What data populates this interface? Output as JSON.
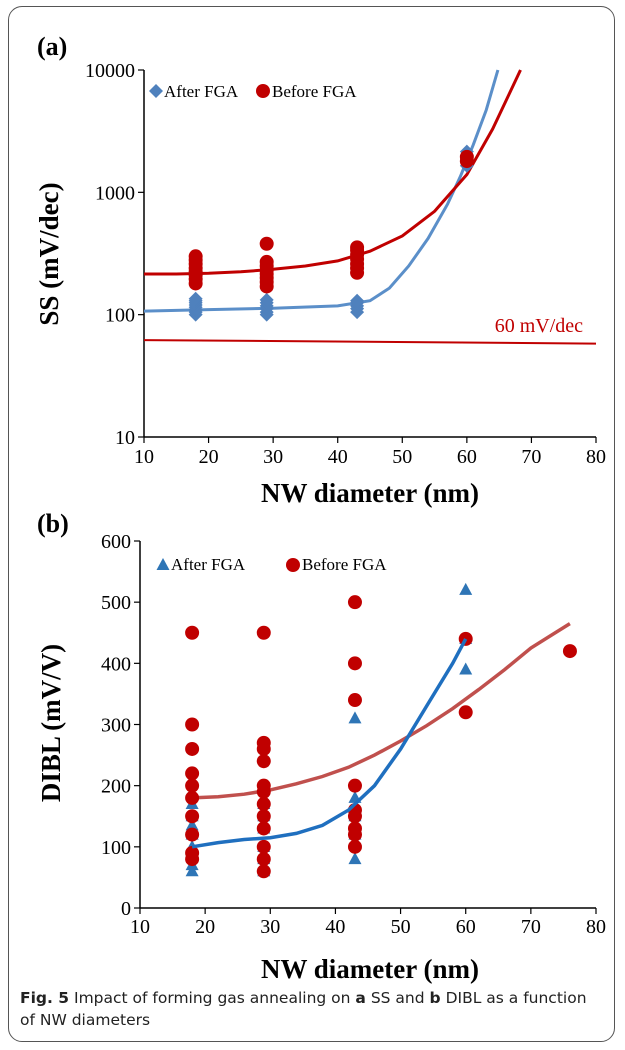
{
  "colors": {
    "after": "#4f81bd",
    "after_fit": "#5b8fc9",
    "before": "#c00000",
    "before_fit": "#c00000",
    "after_b": "#2e75b6",
    "after_fit_b": "#1f6fbf",
    "before_b": "#c00000",
    "before_fit_b": "#c0504d",
    "ref_line": "#c00000"
  },
  "caption": {
    "prefix": "Fig. 5",
    "text_1": "Impact of forming gas annealing on",
    "a": "a",
    "text_2": "SS and",
    "b": "b",
    "text_3": "DIBL as a function of NW diameters"
  },
  "chart_data": [
    {
      "panel": "(a)",
      "type": "scatter",
      "xlabel": "NW diameter (nm)",
      "ylabel": "SS (mV/dec)",
      "xlim": [
        10,
        80
      ],
      "ylim": [
        10,
        10000
      ],
      "yscale": "log",
      "x_ticks": [
        "10",
        "20",
        "30",
        "40",
        "50",
        "60",
        "70",
        "80"
      ],
      "y_ticks": [
        "10",
        "100",
        "1000",
        "10000"
      ],
      "legend_position": "top-left",
      "annotation": "60 mV/dec",
      "reference_line": {
        "x": [
          10,
          80
        ],
        "y": [
          62,
          58
        ]
      },
      "series": [
        {
          "name": "After FGA",
          "marker": "diamond",
          "points": [
            [
              18,
              100
            ],
            [
              18,
              105
            ],
            [
              18,
              110
            ],
            [
              18,
              115
            ],
            [
              18,
              120
            ],
            [
              18,
              125
            ],
            [
              18,
              130
            ],
            [
              18,
              135
            ],
            [
              29,
              100
            ],
            [
              29,
              105
            ],
            [
              29,
              112
            ],
            [
              29,
              118
            ],
            [
              29,
              125
            ],
            [
              29,
              132
            ],
            [
              43,
              105
            ],
            [
              43,
              112
            ],
            [
              43,
              118
            ],
            [
              43,
              125
            ],
            [
              43,
              130
            ],
            [
              60,
              1650
            ],
            [
              60,
              1800
            ],
            [
              60,
              2000
            ],
            [
              60,
              2150
            ]
          ],
          "fit": [
            [
              10,
              107
            ],
            [
              20,
              110
            ],
            [
              30,
              113
            ],
            [
              40,
              118
            ],
            [
              45,
              130
            ],
            [
              48,
              165
            ],
            [
              51,
              250
            ],
            [
              54,
              420
            ],
            [
              57,
              800
            ],
            [
              59,
              1350
            ],
            [
              61,
              2450
            ],
            [
              63,
              4700
            ],
            [
              64.8,
              10000
            ]
          ]
        },
        {
          "name": "Before FGA",
          "marker": "circle",
          "points": [
            [
              18,
              180
            ],
            [
              18,
              195
            ],
            [
              18,
              210
            ],
            [
              18,
              225
            ],
            [
              18,
              240
            ],
            [
              18,
              260
            ],
            [
              18,
              280
            ],
            [
              18,
              300
            ],
            [
              29,
              170
            ],
            [
              29,
              185
            ],
            [
              29,
              200
            ],
            [
              29,
              215
            ],
            [
              29,
              230
            ],
            [
              29,
              250
            ],
            [
              29,
              270
            ],
            [
              29,
              380
            ],
            [
              43,
              220
            ],
            [
              43,
              240
            ],
            [
              43,
              260
            ],
            [
              43,
              285
            ],
            [
              43,
              310
            ],
            [
              43,
              335
            ],
            [
              43,
              355
            ],
            [
              60,
              1800
            ],
            [
              60,
              1950
            ]
          ],
          "fit": [
            [
              10,
              215
            ],
            [
              15,
              215
            ],
            [
              20,
              218
            ],
            [
              25,
              224
            ],
            [
              30,
              235
            ],
            [
              35,
              250
            ],
            [
              40,
              275
            ],
            [
              45,
              330
            ],
            [
              50,
              440
            ],
            [
              55,
              700
            ],
            [
              60,
              1400
            ],
            [
              64,
              3300
            ],
            [
              68.3,
              10000
            ]
          ]
        }
      ]
    },
    {
      "panel": "(b)",
      "type": "scatter",
      "xlabel": "NW diameter (nm)",
      "ylabel": "DIBL (mV/V)",
      "xlim": [
        10,
        80
      ],
      "ylim": [
        0,
        600
      ],
      "x_ticks": [
        "10",
        "20",
        "30",
        "40",
        "50",
        "60",
        "70",
        "80"
      ],
      "y_ticks": [
        "0",
        "100",
        "200",
        "300",
        "400",
        "500",
        "600"
      ],
      "legend_position": "top-left",
      "series": [
        {
          "name": "After FGA",
          "marker": "triangle",
          "points": [
            [
              18,
              60
            ],
            [
              18,
              70
            ],
            [
              18,
              85
            ],
            [
              18,
              100
            ],
            [
              18,
              120
            ],
            [
              18,
              135
            ],
            [
              18,
              150
            ],
            [
              18,
              170
            ],
            [
              29,
              60
            ],
            [
              29,
              80
            ],
            [
              29,
              100
            ],
            [
              29,
              130
            ],
            [
              29,
              150
            ],
            [
              29,
              170
            ],
            [
              43,
              80
            ],
            [
              43,
              120
            ],
            [
              43,
              150
            ],
            [
              43,
              180
            ],
            [
              43,
              310
            ],
            [
              60,
              390
            ],
            [
              60,
              440
            ],
            [
              60,
              520
            ]
          ],
          "fit": [
            [
              18,
              100
            ],
            [
              22,
              107
            ],
            [
              26,
              112
            ],
            [
              30,
              115
            ],
            [
              34,
              122
            ],
            [
              38,
              135
            ],
            [
              42,
              160
            ],
            [
              46,
              200
            ],
            [
              50,
              260
            ],
            [
              54,
              330
            ],
            [
              58,
              400
            ],
            [
              60,
              440
            ]
          ]
        },
        {
          "name": "Before FGA",
          "marker": "circle",
          "points": [
            [
              18,
              80
            ],
            [
              18,
              90
            ],
            [
              18,
              120
            ],
            [
              18,
              150
            ],
            [
              18,
              180
            ],
            [
              18,
              200
            ],
            [
              18,
              220
            ],
            [
              18,
              260
            ],
            [
              18,
              300
            ],
            [
              18,
              450
            ],
            [
              29,
              60
            ],
            [
              29,
              80
            ],
            [
              29,
              100
            ],
            [
              29,
              130
            ],
            [
              29,
              150
            ],
            [
              29,
              170
            ],
            [
              29,
              190
            ],
            [
              29,
              200
            ],
            [
              29,
              240
            ],
            [
              29,
              260
            ],
            [
              29,
              270
            ],
            [
              29,
              450
            ],
            [
              43,
              100
            ],
            [
              43,
              120
            ],
            [
              43,
              130
            ],
            [
              43,
              150
            ],
            [
              43,
              160
            ],
            [
              43,
              200
            ],
            [
              43,
              340
            ],
            [
              43,
              400
            ],
            [
              43,
              500
            ],
            [
              60,
              320
            ],
            [
              60,
              440
            ],
            [
              76,
              420
            ]
          ],
          "fit": [
            [
              18,
              180
            ],
            [
              22,
              182
            ],
            [
              26,
              186
            ],
            [
              30,
              193
            ],
            [
              34,
              203
            ],
            [
              38,
              215
            ],
            [
              42,
              230
            ],
            [
              46,
              250
            ],
            [
              50,
              273
            ],
            [
              54,
              298
            ],
            [
              58,
              326
            ],
            [
              62,
              357
            ],
            [
              66,
              390
            ],
            [
              70,
              425
            ],
            [
              76,
              465
            ]
          ]
        }
      ]
    }
  ]
}
